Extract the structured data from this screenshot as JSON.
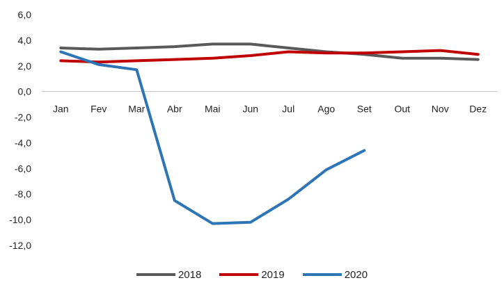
{
  "chart_data": {
    "type": "line",
    "categories": [
      "Jan",
      "Fev",
      "Mar",
      "Abr",
      "Mai",
      "Jun",
      "Jul",
      "Ago",
      "Set",
      "Out",
      "Nov",
      "Dez"
    ],
    "ylim": [
      -12.0,
      6.0
    ],
    "yticks": [
      "6,0",
      "4,0",
      "2,0",
      "0,0",
      "-2,0",
      "-4,0",
      "-6,0",
      "-8,0",
      "-10,0",
      "-12,0"
    ],
    "ytick_values": [
      6,
      4,
      2,
      0,
      -2,
      -4,
      -6,
      -8,
      -10,
      -12
    ],
    "grid": false,
    "legend_position": "bottom",
    "series": [
      {
        "name": "2018",
        "color": "#595959",
        "values": [
          3.4,
          3.3,
          3.4,
          3.5,
          3.7,
          3.7,
          3.4,
          3.1,
          2.9,
          2.6,
          2.6,
          2.5
        ]
      },
      {
        "name": "2019",
        "color": "#c00000",
        "values": [
          2.4,
          2.3,
          2.4,
          2.5,
          2.6,
          2.8,
          3.1,
          3.0,
          3.0,
          3.1,
          3.2,
          2.9
        ]
      },
      {
        "name": "2020",
        "color": "#2e75b6",
        "values": [
          3.1,
          2.1,
          1.7,
          -8.5,
          -10.3,
          -10.2,
          -8.4,
          -6.1,
          -4.6,
          null,
          null,
          null
        ]
      }
    ]
  }
}
